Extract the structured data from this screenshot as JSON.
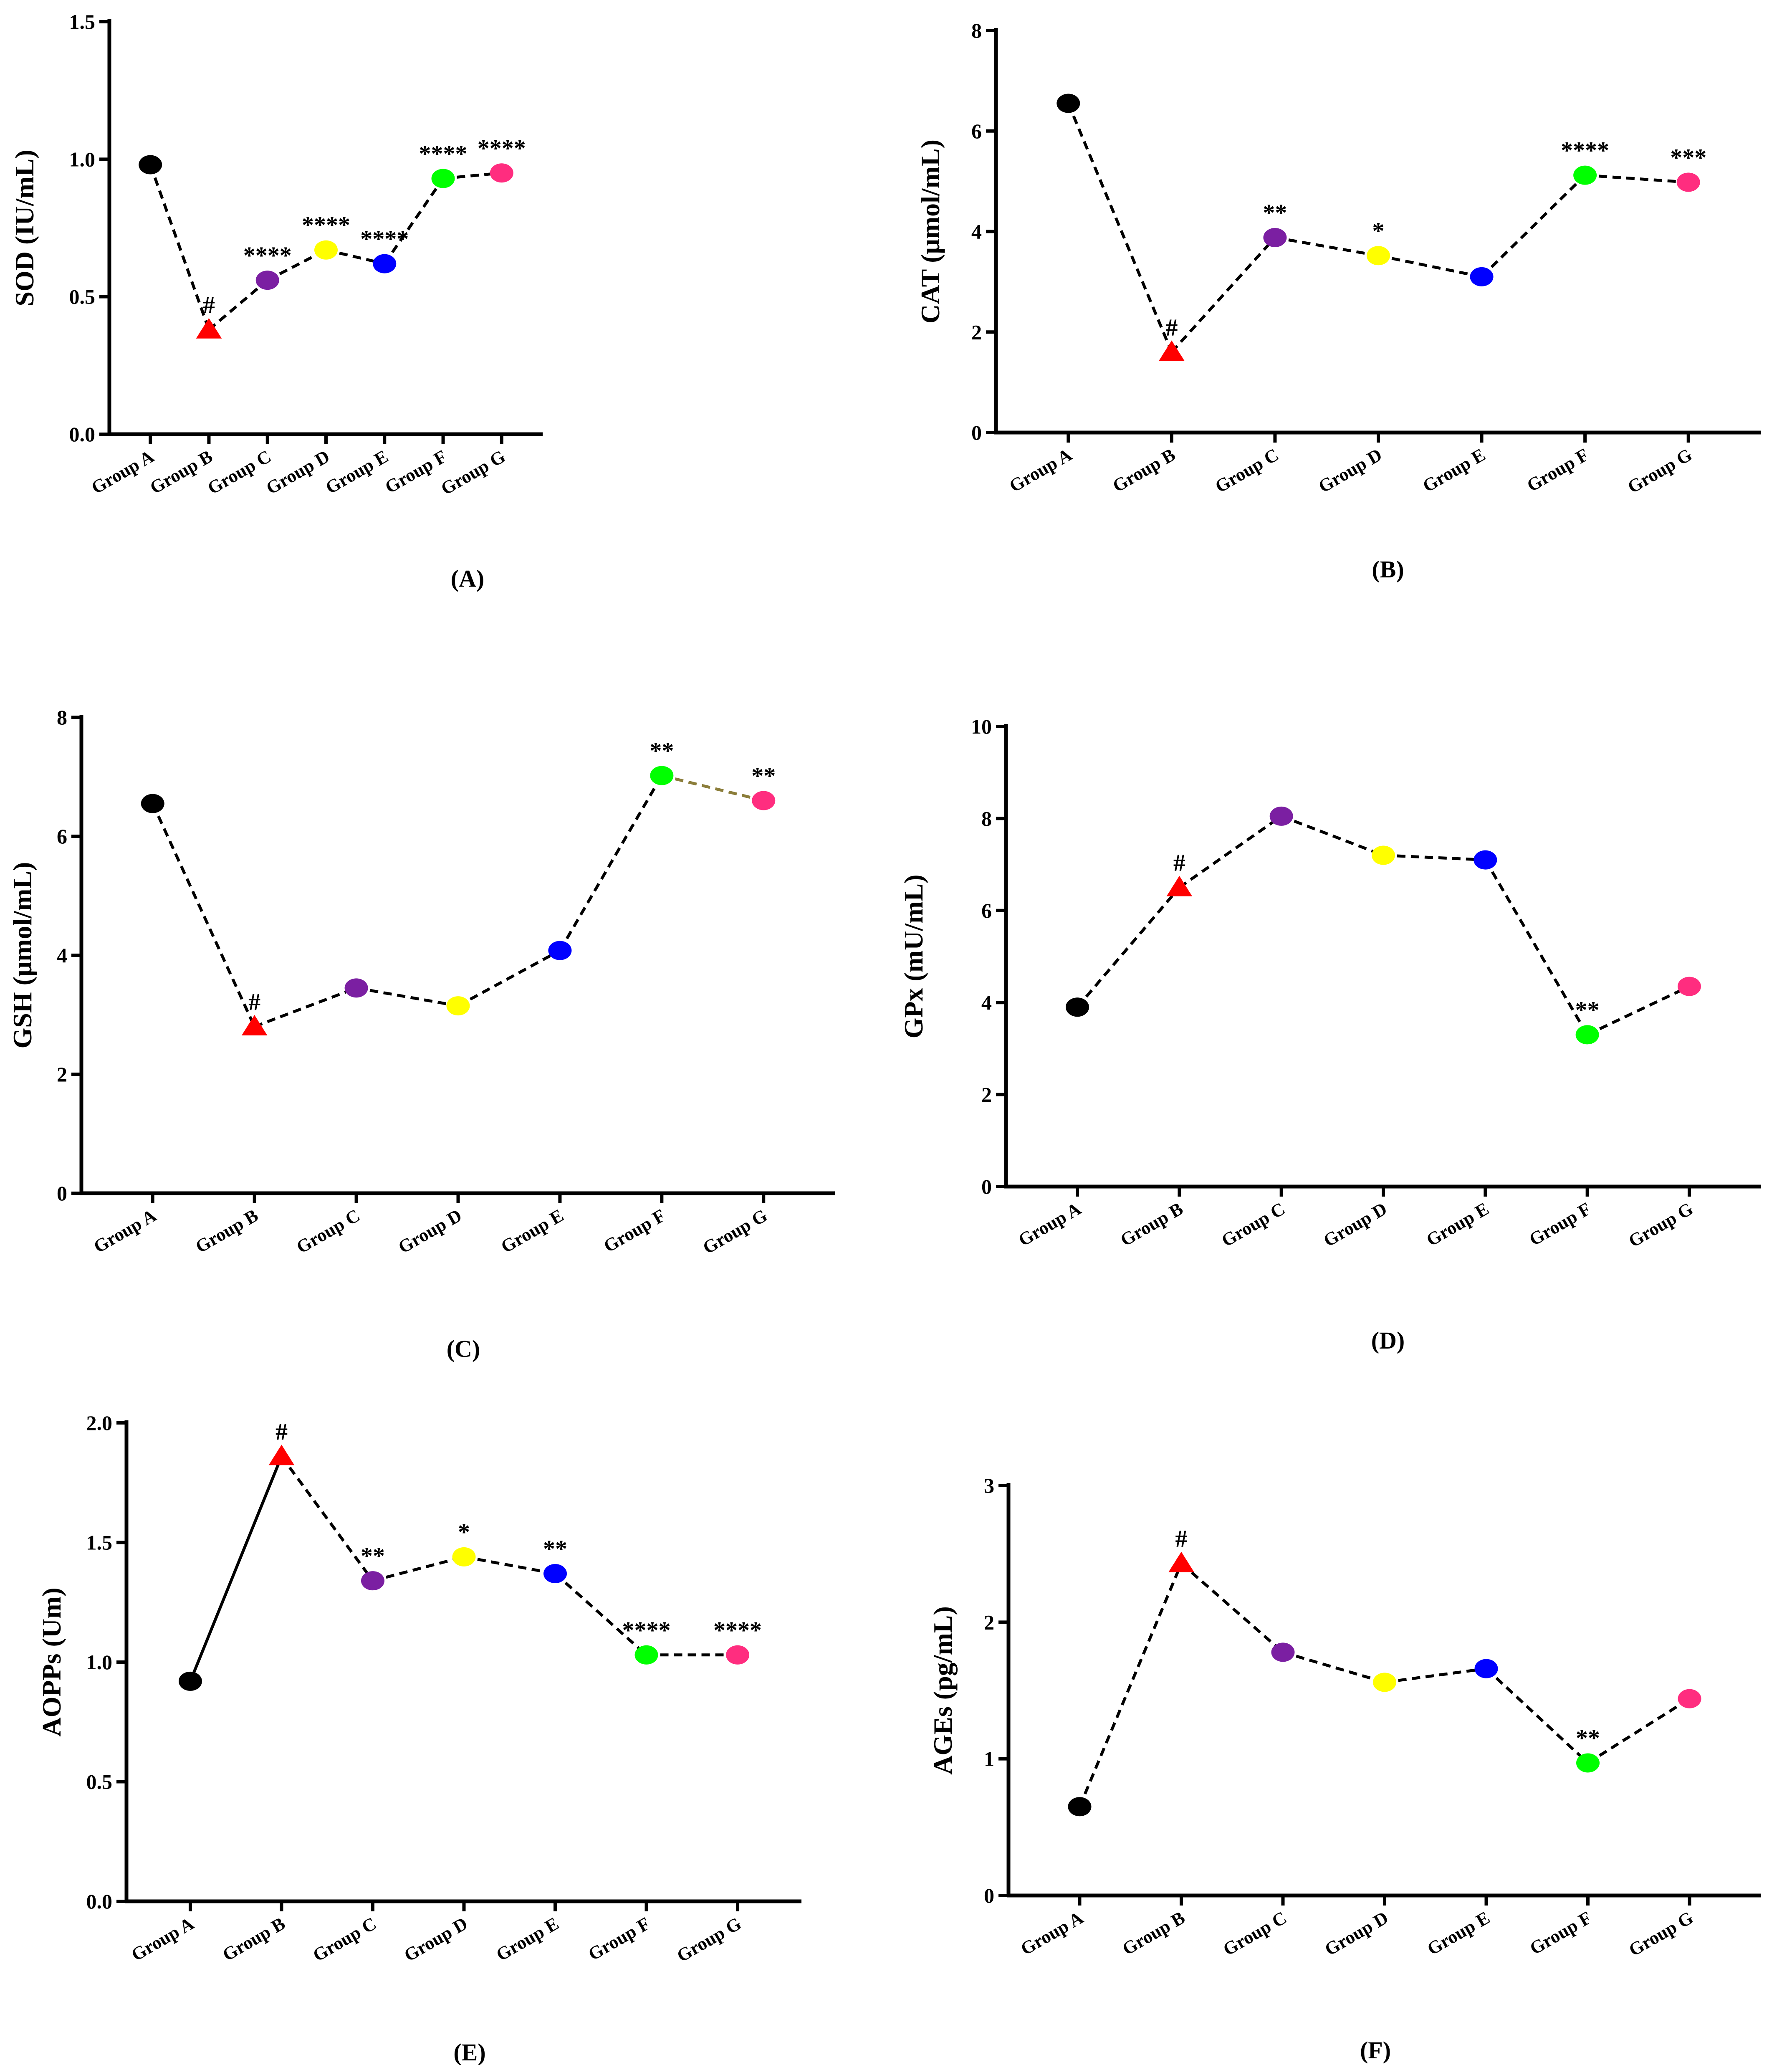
{
  "figure": {
    "colors": {
      "Group A": "#000000",
      "Group B": "#ff0000",
      "Group C": "#7b1fa2",
      "Group D": "#ffff00",
      "Group E": "#0000ff",
      "Group F": "#00ff00",
      "Group G": "#ff2d7f"
    }
  },
  "chart_data": [
    {
      "type": "line",
      "panel_label": "(A)",
      "ylabel": "SOD (IU/mL)",
      "categories": [
        "Group A",
        "Group B",
        "Group C",
        "Group D",
        "Group E",
        "Group F",
        "Group G"
      ],
      "values": [
        0.98,
        0.38,
        0.56,
        0.67,
        0.62,
        0.93,
        0.95
      ],
      "significance": [
        "",
        "#",
        "****",
        "****",
        "****",
        "****",
        "****"
      ],
      "ylim": [
        0,
        1.5
      ],
      "yticks": [
        0.0,
        0.5,
        1.0,
        1.5
      ],
      "ytick_labels": [
        "0.0",
        "0.5",
        "1.0",
        "1.5"
      ],
      "segment_styles": [
        "dashed",
        "dashed",
        "dashed",
        "dashed",
        "dashed",
        "dashed"
      ]
    },
    {
      "type": "line",
      "panel_label": "(B)",
      "ylabel": "CAT (μmol/mL)",
      "categories": [
        "Group A",
        "Group B",
        "Group C",
        "Group D",
        "Group E",
        "Group F",
        "Group G"
      ],
      "values": [
        6.55,
        1.6,
        3.88,
        3.52,
        3.1,
        5.12,
        4.98
      ],
      "significance": [
        "",
        "#",
        "**",
        "*",
        "",
        "****",
        "***"
      ],
      "ylim": [
        0,
        8
      ],
      "yticks": [
        0,
        2,
        4,
        6,
        8
      ],
      "ytick_labels": [
        "0",
        "2",
        "4",
        "6",
        "8"
      ],
      "segment_styles": [
        "dashed",
        "dashed",
        "dashed",
        "dashed",
        "dashed",
        "dashed"
      ]
    },
    {
      "type": "line",
      "panel_label": "(C)",
      "ylabel": "GSH (μmol/mL)",
      "categories": [
        "Group A",
        "Group B",
        "Group C",
        "Group D",
        "Group E",
        "Group F",
        "Group G"
      ],
      "values": [
        6.55,
        2.8,
        3.45,
        3.15,
        4.08,
        7.02,
        6.6
      ],
      "significance": [
        "",
        "#",
        "",
        "",
        "",
        "**",
        "**"
      ],
      "ylim": [
        0,
        8
      ],
      "yticks": [
        0,
        2,
        4,
        6,
        8
      ],
      "ytick_labels": [
        "0",
        "2",
        "4",
        "6",
        "8"
      ],
      "segment_styles": [
        "dashed",
        "dashed",
        "dashed",
        "dashed",
        "dashed",
        "dashed-olive"
      ]
    },
    {
      "type": "line",
      "panel_label": "(D)",
      "ylabel": "GPx (mU/mL)",
      "categories": [
        "Group A",
        "Group B",
        "Group C",
        "Group D",
        "Group E",
        "Group F",
        "Group G"
      ],
      "values": [
        3.9,
        6.5,
        8.05,
        7.2,
        7.1,
        3.3,
        4.35
      ],
      "significance": [
        "",
        "#",
        "",
        "",
        "",
        "**",
        ""
      ],
      "ylim": [
        0,
        10
      ],
      "yticks": [
        0,
        2,
        4,
        6,
        8,
        10
      ],
      "ytick_labels": [
        "0",
        "2",
        "4",
        "6",
        "8",
        "10"
      ],
      "segment_styles": [
        "dashed",
        "dashed",
        "dashed",
        "dashed",
        "dashed",
        "dashed"
      ]
    },
    {
      "type": "line",
      "panel_label": "(E)",
      "ylabel": "AOPPs (Um)",
      "categories": [
        "Group A",
        "Group B",
        "Group C",
        "Group D",
        "Group E",
        "Group F",
        "Group G"
      ],
      "values": [
        0.92,
        1.86,
        1.34,
        1.44,
        1.37,
        1.03,
        1.03
      ],
      "significance": [
        "",
        "#",
        "**",
        "*",
        "**",
        "****",
        "****"
      ],
      "ylim": [
        0,
        2.0
      ],
      "yticks": [
        0.0,
        0.5,
        1.0,
        1.5,
        2.0
      ],
      "ytick_labels": [
        "0.0",
        "0.5",
        "1.0",
        "1.5",
        "2.0"
      ],
      "segment_styles": [
        "solid",
        "dashed",
        "dashed",
        "dashed",
        "dashed",
        "dashed"
      ]
    },
    {
      "type": "line",
      "panel_label": "(F)",
      "ylabel": "AGEs (pg/mL)",
      "categories": [
        "Group A",
        "Group B",
        "Group C",
        "Group D",
        "Group E",
        "Group F",
        "Group G"
      ],
      "values": [
        0.65,
        2.43,
        1.78,
        1.56,
        1.66,
        0.97,
        1.44
      ],
      "significance": [
        "",
        "#",
        "",
        "",
        "",
        "**",
        ""
      ],
      "ylim": [
        0,
        3
      ],
      "yticks": [
        0,
        1,
        2,
        3
      ],
      "ytick_labels": [
        "0",
        "1",
        "2",
        "3"
      ],
      "segment_styles": [
        "dashed",
        "dashed",
        "dashed",
        "dashed",
        "dashed",
        "dashed"
      ]
    }
  ]
}
